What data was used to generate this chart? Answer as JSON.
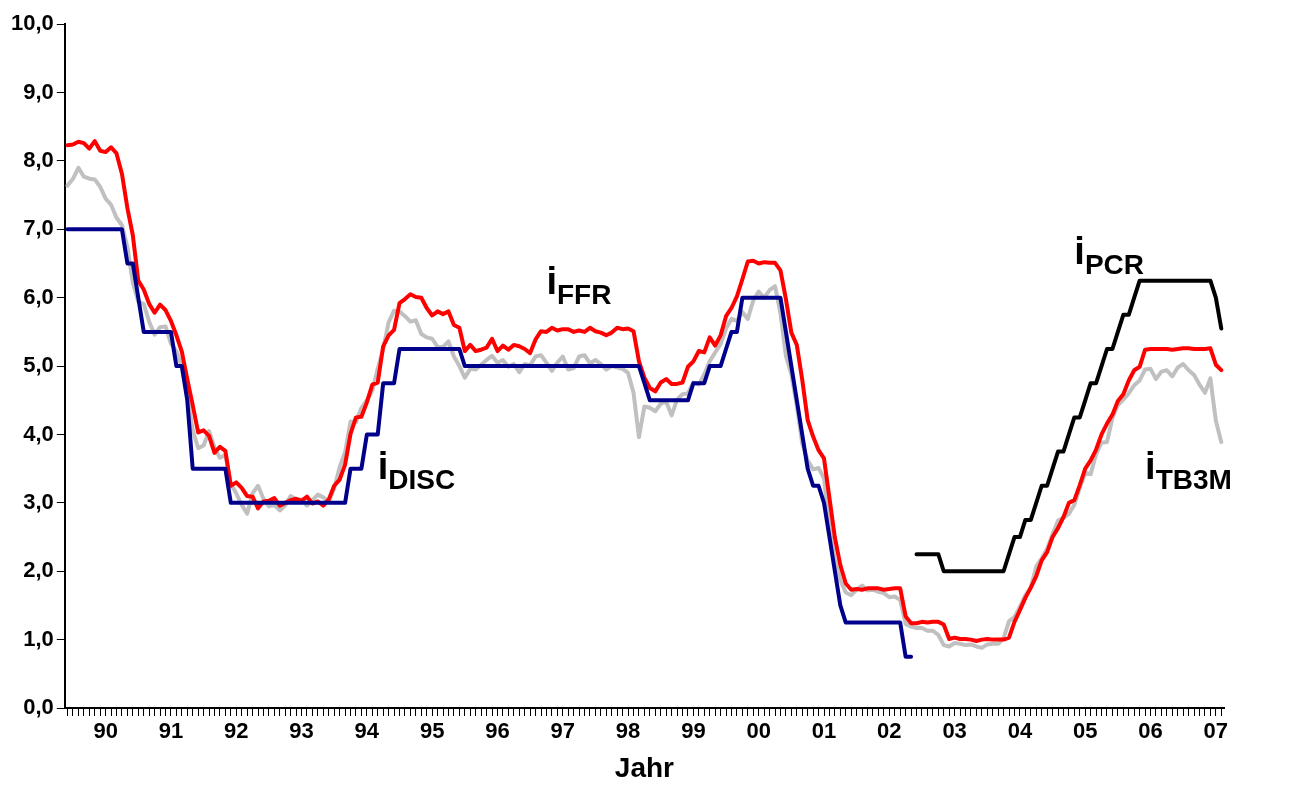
{
  "chart_data": {
    "type": "line",
    "xlabel": "Jahr",
    "ylim": [
      0,
      10
    ],
    "categories": [
      null,
      null,
      null,
      null,
      null,
      null,
      null,
      "90",
      null,
      null,
      null,
      null,
      null,
      null,
      null,
      null,
      null,
      null,
      null,
      "91",
      null,
      null,
      null,
      null,
      null,
      null,
      null,
      null,
      null,
      null,
      null,
      "92",
      null,
      null,
      null,
      null,
      null,
      null,
      null,
      null,
      null,
      null,
      null,
      "93",
      null,
      null,
      null,
      null,
      null,
      null,
      null,
      null,
      null,
      null,
      null,
      "94",
      null,
      null,
      null,
      null,
      null,
      null,
      null,
      null,
      null,
      null,
      null,
      "95",
      null,
      null,
      null,
      null,
      null,
      null,
      null,
      null,
      null,
      null,
      null,
      "96",
      null,
      null,
      null,
      null,
      null,
      null,
      null,
      null,
      null,
      null,
      null,
      "97",
      null,
      null,
      null,
      null,
      null,
      null,
      null,
      null,
      null,
      null,
      null,
      "98",
      null,
      null,
      null,
      null,
      null,
      null,
      null,
      null,
      null,
      null,
      null,
      "99",
      null,
      null,
      null,
      null,
      null,
      null,
      null,
      null,
      null,
      null,
      null,
      "00",
      null,
      null,
      null,
      null,
      null,
      null,
      null,
      null,
      null,
      null,
      null,
      "01",
      null,
      null,
      null,
      null,
      null,
      null,
      null,
      null,
      null,
      null,
      null,
      "02",
      null,
      null,
      null,
      null,
      null,
      null,
      null,
      null,
      null,
      null,
      null,
      "03",
      null,
      null,
      null,
      null,
      null,
      null,
      null,
      null,
      null,
      null,
      null,
      "04",
      null,
      null,
      null,
      null,
      null,
      null,
      null,
      null,
      null,
      null,
      null,
      "05",
      null,
      null,
      null,
      null,
      null,
      null,
      null,
      null,
      null,
      null,
      null,
      "06",
      null,
      null,
      null,
      null,
      null,
      null,
      null,
      null,
      null,
      null,
      null,
      "07",
      null
    ],
    "yticks": [
      {
        "value": 0,
        "label": "0,0"
      },
      {
        "value": 1,
        "label": "1,0"
      },
      {
        "value": 2,
        "label": "2,0"
      },
      {
        "value": 3,
        "label": "3,0"
      },
      {
        "value": 4,
        "label": "4,0"
      },
      {
        "value": 5,
        "label": "5,0"
      },
      {
        "value": 6,
        "label": "6,0"
      },
      {
        "value": 7,
        "label": "7,0"
      },
      {
        "value": 8,
        "label": "8,0"
      },
      {
        "value": 9,
        "label": "9,0"
      },
      {
        "value": 10,
        "label": "10,0"
      }
    ],
    "grid": false,
    "legend": false,
    "marker": "none",
    "line_style": "solid",
    "series": [
      {
        "name": "i$_{DISC}$",
        "color": "#00008b",
        "values": [
          7,
          7,
          7,
          7,
          7,
          7,
          7,
          7,
          7,
          7,
          7,
          6.5,
          6.5,
          6,
          5.5,
          5.5,
          5.5,
          5.5,
          5.5,
          5.5,
          5,
          5,
          4.5,
          3.5,
          3.5,
          3.5,
          3.5,
          3.5,
          3.5,
          3.5,
          3,
          3,
          3,
          3,
          3,
          3,
          3,
          3,
          3,
          3,
          3,
          3,
          3,
          3,
          3,
          3,
          3,
          3,
          3,
          3,
          3,
          3,
          3.5,
          3.5,
          3.5,
          4,
          4,
          4,
          4.75,
          4.75,
          4.75,
          5.25,
          5.25,
          5.25,
          5.25,
          5.25,
          5.25,
          5.25,
          5.25,
          5.25,
          5.25,
          5.25,
          5.25,
          5,
          5,
          5,
          5,
          5,
          5,
          5,
          5,
          5,
          5,
          5,
          5,
          5,
          5,
          5,
          5,
          5,
          5,
          5,
          5,
          5,
          5,
          5,
          5,
          5,
          5,
          5,
          5,
          5,
          5,
          5,
          5,
          5,
          4.75,
          4.5,
          4.5,
          4.5,
          4.5,
          4.5,
          4.5,
          4.5,
          4.5,
          4.75,
          4.75,
          4.75,
          5,
          5,
          5,
          5.25,
          5.5,
          5.5,
          6,
          6,
          6,
          6,
          6,
          6,
          6,
          6,
          5.5,
          5,
          4.5,
          4,
          3.5,
          3.25,
          3.25,
          3,
          2.5,
          2,
          1.5,
          1.25,
          1.25,
          1.25,
          1.25,
          1.25,
          1.25,
          1.25,
          1.25,
          1.25,
          1.25,
          1.25,
          0.75,
          0.75,
          null,
          null,
          null,
          null,
          null,
          null,
          null,
          null,
          null,
          null,
          null,
          null,
          null,
          null,
          null,
          null,
          null,
          null,
          null,
          null,
          null,
          null,
          null,
          null,
          null,
          null,
          null,
          null,
          null,
          null,
          null,
          null,
          null,
          null,
          null,
          null,
          null,
          null,
          null,
          null,
          null,
          null,
          null,
          null,
          null,
          null,
          null,
          null,
          null,
          null,
          null,
          null,
          null,
          null,
          null,
          null,
          null
        ]
      },
      {
        "name": "i$_{FFR}$",
        "color": "#ff0000",
        "values": [
          8.23,
          8.24,
          8.28,
          8.26,
          8.18,
          8.29,
          8.15,
          8.13,
          8.2,
          8.11,
          7.81,
          7.31,
          6.91,
          6.25,
          6.12,
          5.91,
          5.78,
          5.9,
          5.82,
          5.66,
          5.45,
          5.21,
          4.81,
          4.43,
          4.03,
          4.06,
          3.98,
          3.73,
          3.82,
          3.76,
          3.25,
          3.3,
          3.22,
          3.1,
          3.09,
          2.92,
          3.02,
          3.03,
          3.07,
          2.96,
          3,
          3.04,
          3.06,
          3.03,
          3.09,
          2.99,
          3.02,
          2.96,
          3.05,
          3.25,
          3.34,
          3.56,
          4.01,
          4.25,
          4.26,
          4.47,
          4.73,
          4.76,
          5.29,
          5.45,
          5.53,
          5.92,
          5.98,
          6.05,
          6.01,
          6,
          5.85,
          5.74,
          5.8,
          5.76,
          5.8,
          5.6,
          5.56,
          5.22,
          5.31,
          5.22,
          5.24,
          5.27,
          5.4,
          5.22,
          5.3,
          5.24,
          5.31,
          5.29,
          5.25,
          5.19,
          5.39,
          5.51,
          5.5,
          5.56,
          5.52,
          5.54,
          5.54,
          5.5,
          5.52,
          5.5,
          5.56,
          5.51,
          5.49,
          5.45,
          5.49,
          5.56,
          5.54,
          5.55,
          5.51,
          5.07,
          4.83,
          4.68,
          4.63,
          4.76,
          4.81,
          4.74,
          4.74,
          4.76,
          4.99,
          5.07,
          5.22,
          5.2,
          5.42,
          5.3,
          5.45,
          5.73,
          5.85,
          6.02,
          6.27,
          6.53,
          6.54,
          6.5,
          6.52,
          6.51,
          6.51,
          6.4,
          5.98,
          5.49,
          5.31,
          4.8,
          4.21,
          3.97,
          3.77,
          3.65,
          3.07,
          2.49,
          2.09,
          1.82,
          1.73,
          1.74,
          1.73,
          1.75,
          1.75,
          1.75,
          1.73,
          1.74,
          1.75,
          1.75,
          1.34,
          1.24,
          1.24,
          1.26,
          1.25,
          1.26,
          1.26,
          1.22,
          1.01,
          1.03,
          1.01,
          1.01,
          1,
          0.98,
          1,
          1.01,
          1,
          1,
          1,
          1.03,
          1.26,
          1.43,
          1.61,
          1.76,
          1.93,
          2.16,
          2.28,
          2.5,
          2.63,
          2.79,
          3,
          3.04,
          3.26,
          3.5,
          3.62,
          3.78,
          4,
          4.16,
          4.29,
          4.49,
          4.59,
          4.79,
          4.94,
          4.99,
          5.24,
          5.25,
          5.25,
          5.25,
          5.25,
          5.24,
          5.25,
          5.26,
          5.26,
          5.25,
          5.25,
          5.25,
          5.26,
          5.02,
          4.94
        ]
      },
      {
        "name": "i$_{PCR}$",
        "color": "#000000",
        "values": [
          null,
          null,
          null,
          null,
          null,
          null,
          null,
          null,
          null,
          null,
          null,
          null,
          null,
          null,
          null,
          null,
          null,
          null,
          null,
          null,
          null,
          null,
          null,
          null,
          null,
          null,
          null,
          null,
          null,
          null,
          null,
          null,
          null,
          null,
          null,
          null,
          null,
          null,
          null,
          null,
          null,
          null,
          null,
          null,
          null,
          null,
          null,
          null,
          null,
          null,
          null,
          null,
          null,
          null,
          null,
          null,
          null,
          null,
          null,
          null,
          null,
          null,
          null,
          null,
          null,
          null,
          null,
          null,
          null,
          null,
          null,
          null,
          null,
          null,
          null,
          null,
          null,
          null,
          null,
          null,
          null,
          null,
          null,
          null,
          null,
          null,
          null,
          null,
          null,
          null,
          null,
          null,
          null,
          null,
          null,
          null,
          null,
          null,
          null,
          null,
          null,
          null,
          null,
          null,
          null,
          null,
          null,
          null,
          null,
          null,
          null,
          null,
          null,
          null,
          null,
          null,
          null,
          null,
          null,
          null,
          null,
          null,
          null,
          null,
          null,
          null,
          null,
          null,
          null,
          null,
          null,
          null,
          null,
          null,
          null,
          null,
          null,
          null,
          null,
          null,
          null,
          null,
          null,
          null,
          null,
          null,
          null,
          null,
          null,
          null,
          null,
          null,
          null,
          null,
          null,
          null,
          2.25,
          2.25,
          2.25,
          2.25,
          2.25,
          2,
          2,
          2,
          2,
          2,
          2,
          2,
          2,
          2,
          2,
          2,
          2,
          2.25,
          2.5,
          2.5,
          2.75,
          2.75,
          3,
          3.25,
          3.25,
          3.5,
          3.75,
          3.75,
          4,
          4.25,
          4.25,
          4.5,
          4.75,
          4.75,
          5,
          5.25,
          5.25,
          5.5,
          5.75,
          5.75,
          6,
          6.25,
          6.25,
          6.25,
          6.25,
          6.25,
          6.25,
          6.25,
          6.25,
          6.25,
          6.25,
          6.25,
          6.25,
          6.25,
          6.25,
          6,
          5.55
        ]
      },
      {
        "name": "i$_{TB3M}$",
        "color": "#c0c0c0",
        "values": [
          7.64,
          7.74,
          7.9,
          7.77,
          7.74,
          7.73,
          7.62,
          7.45,
          7.36,
          7.17,
          7.06,
          6.74,
          6.22,
          5.94,
          5.91,
          5.65,
          5.46,
          5.57,
          5.58,
          5.33,
          5.22,
          4.99,
          4.56,
          4.07,
          3.8,
          3.84,
          4.05,
          3.81,
          3.66,
          3.7,
          3.28,
          3.14,
          2.97,
          2.84,
          3.14,
          3.25,
          3.06,
          2.95,
          2.97,
          2.89,
          2.96,
          3.1,
          3.05,
          3.05,
          2.96,
          3.04,
          3.12,
          3.08,
          3.02,
          3.21,
          3.52,
          3.74,
          4.19,
          4.18,
          4.39,
          4.5,
          4.64,
          4.96,
          5.25,
          5.64,
          5.81,
          5.8,
          5.73,
          5.65,
          5.67,
          5.47,
          5.42,
          5.4,
          5.28,
          5.28,
          5.36,
          5.14,
          5,
          4.83,
          4.96,
          4.95,
          5.02,
          5.09,
          5.15,
          5.05,
          5.09,
          4.99,
          5.03,
          4.91,
          5.03,
          5.01,
          5.14,
          5.16,
          5.05,
          4.93,
          5.05,
          5.14,
          4.95,
          4.97,
          5.14,
          5.16,
          5.04,
          5.09,
          5.03,
          4.95,
          5,
          4.98,
          4.96,
          4.9,
          4.61,
          3.96,
          4.41,
          4.39,
          4.34,
          4.45,
          4.48,
          4.28,
          4.51,
          4.59,
          4.6,
          4.76,
          4.73,
          4.88,
          5.07,
          5.2,
          5.32,
          5.55,
          5.69,
          5.66,
          5.79,
          5.69,
          5.96,
          6.09,
          6,
          6.11,
          6.17,
          5.77,
          5.15,
          4.88,
          4.42,
          3.87,
          3.62,
          3.49,
          3.51,
          3.36,
          2.64,
          2.16,
          1.87,
          1.69,
          1.65,
          1.73,
          1.79,
          1.72,
          1.73,
          1.7,
          1.68,
          1.62,
          1.63,
          1.58,
          1.23,
          1.19,
          1.17,
          1.17,
          1.13,
          1.13,
          1.07,
          0.92,
          0.9,
          0.95,
          0.94,
          0.92,
          0.93,
          0.9,
          0.88,
          0.93,
          0.94,
          0.94,
          1.02,
          1.27,
          1.33,
          1.48,
          1.65,
          1.76,
          2.07,
          2.19,
          2.33,
          2.54,
          2.74,
          2.78,
          2.84,
          2.97,
          3.22,
          3.44,
          3.42,
          3.71,
          3.88,
          3.89,
          4.24,
          4.43,
          4.51,
          4.6,
          4.72,
          4.79,
          4.95,
          4.96,
          4.81,
          4.92,
          4.94,
          4.85,
          4.98,
          5.03,
          4.94,
          4.87,
          4.73,
          4.61,
          4.82,
          4.2,
          3.89
        ]
      }
    ]
  }
}
